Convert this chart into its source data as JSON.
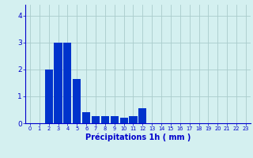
{
  "categories": [
    0,
    1,
    2,
    3,
    4,
    5,
    6,
    7,
    8,
    9,
    10,
    11,
    12,
    13,
    14,
    15,
    16,
    17,
    18,
    19,
    20,
    21,
    22,
    23
  ],
  "values": [
    0,
    0,
    2.0,
    3.0,
    3.0,
    1.65,
    0.4,
    0.25,
    0.25,
    0.25,
    0.2,
    0.25,
    0.55,
    0,
    0,
    0,
    0,
    0,
    0,
    0,
    0,
    0,
    0,
    0
  ],
  "bar_color": "#0033cc",
  "background_color": "#d4f0f0",
  "grid_color": "#aacccc",
  "xlabel": "Précipitations 1h ( mm )",
  "xlabel_color": "#0000cc",
  "tick_color": "#0000cc",
  "ylim": [
    0,
    4.4
  ],
  "yticks": [
    0,
    1,
    2,
    3,
    4
  ],
  "xlim_left": -0.5,
  "xlim_right": 23.5
}
